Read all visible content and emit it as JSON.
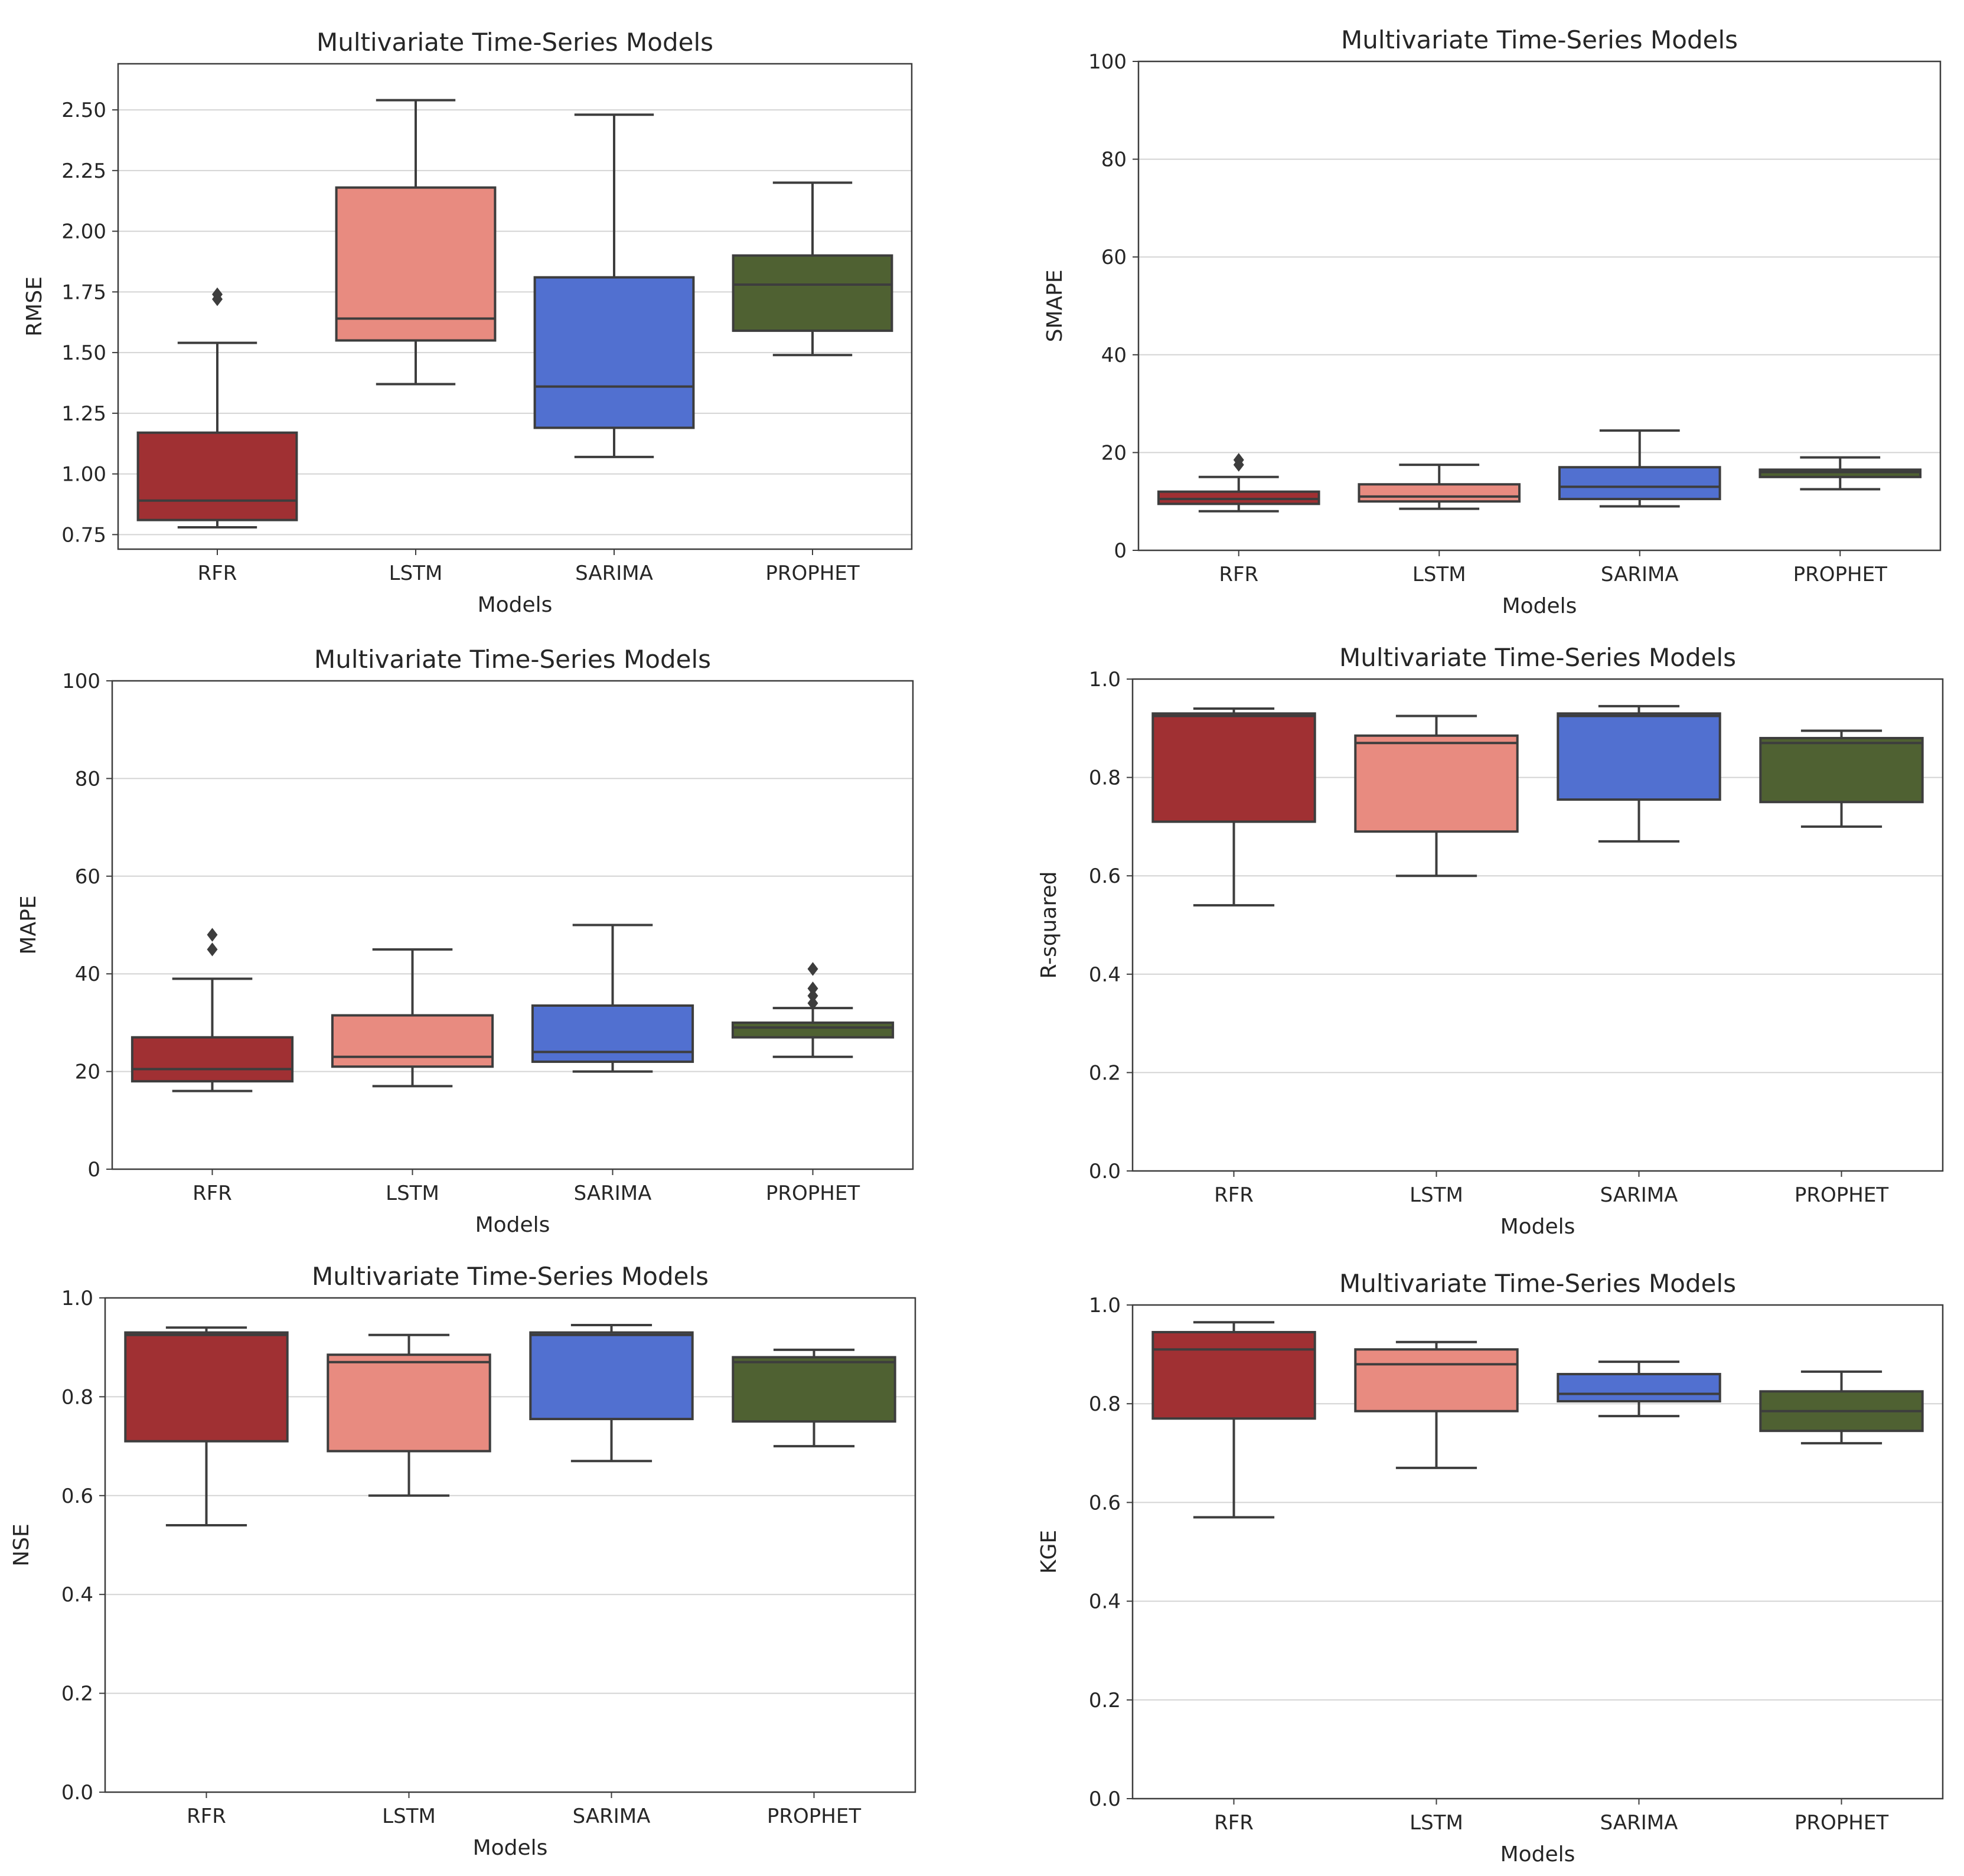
{
  "chart_data": [
    {
      "type": "box",
      "title": "Multivariate Time-Series Models",
      "xlabel": "Models",
      "ylabel": "RMSE",
      "ylim": [
        0.69,
        2.69
      ],
      "yticks": [
        0.75,
        1.0,
        1.25,
        1.5,
        1.75,
        2.0,
        2.25,
        2.5
      ],
      "tick_decimals": 2,
      "grid": "horizontal",
      "categories": [
        "RFR",
        "LSTM",
        "SARIMA",
        "PROPHET"
      ],
      "boxes": [
        {
          "whislo": 0.78,
          "q1": 0.81,
          "med": 0.89,
          "q3": 1.17,
          "whishi": 1.54,
          "fliers": [
            1.72,
            1.74
          ]
        },
        {
          "whislo": 1.37,
          "q1": 1.55,
          "med": 1.64,
          "q3": 2.18,
          "whishi": 2.54,
          "fliers": []
        },
        {
          "whislo": 1.07,
          "q1": 1.19,
          "med": 1.36,
          "q3": 1.81,
          "whishi": 2.48,
          "fliers": []
        },
        {
          "whislo": 1.49,
          "q1": 1.59,
          "med": 1.78,
          "q3": 1.9,
          "whishi": 2.2,
          "fliers": []
        }
      ]
    },
    {
      "type": "box",
      "title": "Multivariate Time-Series Models",
      "xlabel": "Models",
      "ylabel": "SMAPE",
      "ylim": [
        0,
        100
      ],
      "yticks": [
        0,
        20,
        40,
        60,
        80,
        100
      ],
      "tick_decimals": 0,
      "grid": "horizontal",
      "categories": [
        "RFR",
        "LSTM",
        "SARIMA",
        "PROPHET"
      ],
      "boxes": [
        {
          "whislo": 8.0,
          "q1": 9.5,
          "med": 10.5,
          "q3": 12.0,
          "whishi": 15.0,
          "fliers": [
            17.5,
            18.5
          ]
        },
        {
          "whislo": 8.5,
          "q1": 10.0,
          "med": 11.0,
          "q3": 13.5,
          "whishi": 17.5,
          "fliers": []
        },
        {
          "whislo": 9.0,
          "q1": 10.5,
          "med": 13.0,
          "q3": 17.0,
          "whishi": 24.5,
          "fliers": []
        },
        {
          "whislo": 12.5,
          "q1": 15.0,
          "med": 16.0,
          "q3": 16.5,
          "whishi": 19.0,
          "fliers": []
        }
      ]
    },
    {
      "type": "box",
      "title": "Multivariate Time-Series Models",
      "xlabel": "Models",
      "ylabel": "MAPE",
      "ylim": [
        0,
        100
      ],
      "yticks": [
        0,
        20,
        40,
        60,
        80,
        100
      ],
      "tick_decimals": 0,
      "grid": "horizontal",
      "categories": [
        "RFR",
        "LSTM",
        "SARIMA",
        "PROPHET"
      ],
      "boxes": [
        {
          "whislo": 16.0,
          "q1": 18.0,
          "med": 20.5,
          "q3": 27.0,
          "whishi": 39.0,
          "fliers": [
            45.0,
            48.0
          ]
        },
        {
          "whislo": 17.0,
          "q1": 21.0,
          "med": 23.0,
          "q3": 31.5,
          "whishi": 45.0,
          "fliers": []
        },
        {
          "whislo": 20.0,
          "q1": 22.0,
          "med": 24.0,
          "q3": 33.5,
          "whishi": 50.0,
          "fliers": []
        },
        {
          "whislo": 23.0,
          "q1": 27.0,
          "med": 29.0,
          "q3": 30.0,
          "whishi": 33.0,
          "fliers": [
            34.0,
            35.5,
            37.0,
            41.0
          ]
        }
      ]
    },
    {
      "type": "box",
      "title": "Multivariate Time-Series Models",
      "xlabel": "Models",
      "ylabel": "R-squared",
      "ylim": [
        0,
        1
      ],
      "yticks": [
        0.0,
        0.2,
        0.4,
        0.6,
        0.8,
        1.0
      ],
      "tick_decimals": 1,
      "grid": "horizontal",
      "categories": [
        "RFR",
        "LSTM",
        "SARIMA",
        "PROPHET"
      ],
      "boxes": [
        {
          "whislo": 0.54,
          "q1": 0.71,
          "med": 0.925,
          "q3": 0.93,
          "whishi": 0.94,
          "fliers": []
        },
        {
          "whislo": 0.6,
          "q1": 0.69,
          "med": 0.87,
          "q3": 0.885,
          "whishi": 0.925,
          "fliers": []
        },
        {
          "whislo": 0.67,
          "q1": 0.755,
          "med": 0.925,
          "q3": 0.93,
          "whishi": 0.945,
          "fliers": []
        },
        {
          "whislo": 0.7,
          "q1": 0.75,
          "med": 0.87,
          "q3": 0.88,
          "whishi": 0.895,
          "fliers": []
        }
      ]
    },
    {
      "type": "box",
      "title": "Multivariate Time-Series Models",
      "xlabel": "Models",
      "ylabel": "NSE",
      "ylim": [
        0,
        1
      ],
      "yticks": [
        0.0,
        0.2,
        0.4,
        0.6,
        0.8,
        1.0
      ],
      "tick_decimals": 1,
      "grid": "horizontal",
      "categories": [
        "RFR",
        "LSTM",
        "SARIMA",
        "PROPHET"
      ],
      "boxes": [
        {
          "whislo": 0.54,
          "q1": 0.71,
          "med": 0.925,
          "q3": 0.93,
          "whishi": 0.94,
          "fliers": []
        },
        {
          "whislo": 0.6,
          "q1": 0.69,
          "med": 0.87,
          "q3": 0.885,
          "whishi": 0.925,
          "fliers": []
        },
        {
          "whislo": 0.67,
          "q1": 0.755,
          "med": 0.925,
          "q3": 0.93,
          "whishi": 0.945,
          "fliers": []
        },
        {
          "whislo": 0.7,
          "q1": 0.75,
          "med": 0.87,
          "q3": 0.88,
          "whishi": 0.895,
          "fliers": []
        }
      ]
    },
    {
      "type": "box",
      "title": "Multivariate Time-Series Models",
      "xlabel": "Models",
      "ylabel": "KGE",
      "ylim": [
        0,
        1
      ],
      "yticks": [
        0.0,
        0.2,
        0.4,
        0.6,
        0.8,
        1.0
      ],
      "tick_decimals": 1,
      "grid": "horizontal",
      "categories": [
        "RFR",
        "LSTM",
        "SARIMA",
        "PROPHET"
      ],
      "boxes": [
        {
          "whislo": 0.57,
          "q1": 0.77,
          "med": 0.91,
          "q3": 0.945,
          "whishi": 0.965,
          "fliers": []
        },
        {
          "whislo": 0.67,
          "q1": 0.785,
          "med": 0.88,
          "q3": 0.91,
          "whishi": 0.925,
          "fliers": []
        },
        {
          "whislo": 0.775,
          "q1": 0.805,
          "med": 0.82,
          "q3": 0.86,
          "whishi": 0.885,
          "fliers": []
        },
        {
          "whislo": 0.72,
          "q1": 0.745,
          "med": 0.785,
          "q3": 0.825,
          "whishi": 0.865,
          "fliers": []
        }
      ]
    }
  ],
  "palette": [
    "#a03033",
    "#e88b80",
    "#5170d0",
    "#4f6132"
  ],
  "line_color": "#3d3d3d",
  "grid_color": "#d4d4d4"
}
